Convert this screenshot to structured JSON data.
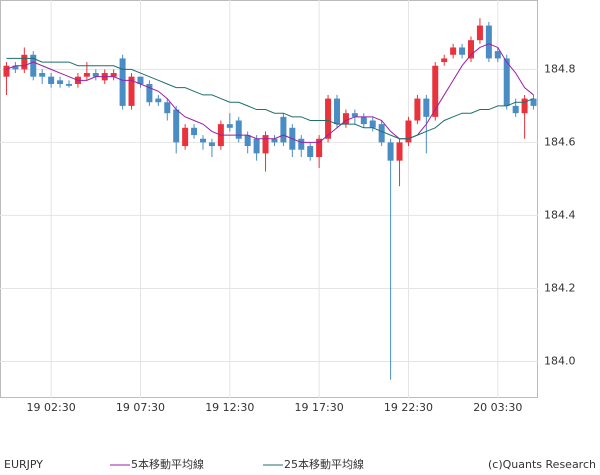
{
  "chart_data": {
    "type": "candlestick",
    "symbol": "EURJPY",
    "credit": "(c)Quants Research",
    "categories": [
      null,
      null,
      null,
      null,
      null,
      "19 02:30",
      null,
      null,
      null,
      null,
      null,
      null,
      null,
      null,
      null,
      "19 07:30",
      null,
      null,
      null,
      null,
      null,
      null,
      null,
      null,
      null,
      "19 12:30",
      null,
      null,
      null,
      null,
      null,
      null,
      null,
      null,
      null,
      "19 17:30",
      null,
      null,
      null,
      null,
      null,
      null,
      null,
      null,
      null,
      "19 22:30",
      null,
      null,
      null,
      null,
      null,
      null,
      null,
      null,
      null,
      "20 03:30",
      null,
      null,
      null,
      null
    ],
    "open": [
      184.78,
      184.81,
      184.8,
      184.84,
      184.79,
      184.78,
      184.77,
      184.76,
      184.76,
      184.78,
      184.79,
      184.77,
      184.78,
      184.83,
      184.7,
      184.78,
      184.76,
      184.72,
      184.71,
      184.69,
      184.59,
      184.64,
      184.61,
      184.6,
      184.59,
      184.65,
      184.66,
      184.62,
      184.61,
      184.57,
      184.61,
      184.67,
      184.64,
      184.61,
      184.59,
      184.56,
      184.61,
      184.72,
      184.65,
      184.68,
      184.67,
      184.66,
      184.65,
      184.6,
      184.55,
      184.6,
      184.66,
      184.72,
      184.67,
      184.82,
      184.84,
      184.86,
      184.83,
      184.88,
      184.92,
      184.85,
      184.83,
      184.7,
      184.68,
      184.72
    ],
    "high": [
      184.82,
      184.82,
      184.86,
      184.85,
      184.8,
      184.79,
      184.78,
      184.77,
      184.79,
      184.82,
      184.8,
      184.8,
      184.8,
      184.84,
      184.79,
      184.78,
      184.77,
      184.73,
      184.72,
      184.7,
      184.65,
      184.65,
      184.62,
      184.61,
      184.66,
      184.68,
      184.67,
      184.63,
      184.62,
      184.63,
      184.62,
      184.68,
      184.65,
      184.62,
      184.6,
      184.62,
      184.73,
      184.73,
      184.69,
      184.69,
      184.68,
      184.67,
      184.66,
      184.61,
      184.61,
      184.67,
      184.73,
      184.73,
      184.82,
      184.84,
      184.87,
      184.87,
      184.89,
      184.94,
      184.93,
      184.86,
      184.84,
      184.72,
      184.73,
      184.73
    ],
    "low": [
      184.73,
      184.79,
      184.79,
      184.77,
      184.76,
      184.75,
      184.75,
      184.75,
      184.75,
      184.77,
      184.77,
      184.76,
      184.77,
      184.69,
      184.69,
      184.75,
      184.7,
      184.7,
      184.66,
      184.57,
      184.58,
      184.61,
      184.58,
      184.56,
      184.58,
      184.63,
      184.6,
      184.57,
      184.55,
      184.52,
      184.59,
      184.59,
      184.56,
      184.56,
      184.55,
      184.53,
      184.6,
      184.64,
      184.64,
      184.65,
      184.64,
      184.63,
      184.59,
      183.95,
      184.48,
      184.59,
      184.65,
      184.57,
      184.66,
      184.81,
      184.83,
      184.83,
      184.82,
      184.87,
      184.82,
      184.82,
      184.69,
      184.67,
      184.61,
      184.69
    ],
    "close": [
      184.81,
      184.8,
      184.84,
      184.78,
      184.78,
      184.76,
      184.76,
      184.755,
      184.78,
      184.79,
      184.78,
      184.79,
      184.79,
      184.7,
      184.78,
      184.76,
      184.71,
      184.71,
      184.68,
      184.6,
      184.64,
      184.62,
      184.6,
      184.59,
      184.65,
      184.64,
      184.61,
      184.59,
      184.57,
      184.62,
      184.6,
      184.6,
      184.58,
      184.58,
      184.56,
      184.61,
      184.72,
      184.65,
      184.68,
      184.67,
      184.65,
      184.64,
      184.6,
      184.55,
      184.6,
      184.66,
      184.72,
      184.67,
      184.81,
      184.83,
      184.86,
      184.84,
      184.88,
      184.92,
      184.83,
      184.83,
      184.7,
      184.68,
      184.72,
      184.7
    ],
    "up_color": "#e8323c",
    "down_color": "#4a8cc4",
    "series": [
      {
        "name": "5本移動平均線",
        "color": "#9b1fa8",
        "values": [
          184.8,
          184.81,
          184.81,
          184.82,
          184.81,
          184.8,
          184.79,
          184.78,
          184.77,
          184.77,
          184.78,
          184.78,
          184.78,
          184.77,
          184.77,
          184.76,
          184.75,
          184.74,
          184.72,
          184.69,
          184.67,
          184.66,
          184.65,
          184.63,
          184.62,
          184.62,
          184.62,
          184.62,
          184.61,
          184.61,
          184.61,
          184.62,
          184.61,
          184.6,
          184.6,
          184.6,
          184.62,
          184.64,
          184.66,
          184.67,
          184.67,
          184.67,
          184.66,
          184.63,
          184.61,
          184.61,
          184.62,
          184.65,
          184.69,
          184.73,
          184.77,
          184.81,
          184.84,
          184.86,
          184.87,
          184.86,
          184.82,
          184.79,
          184.75,
          184.73
        ]
      },
      {
        "name": "25本移動平均線",
        "color": "#1f6f6a",
        "values": [
          184.83,
          184.83,
          184.83,
          184.83,
          184.82,
          184.82,
          184.82,
          184.82,
          184.81,
          184.81,
          184.81,
          184.81,
          184.81,
          184.8,
          184.8,
          184.79,
          184.78,
          184.77,
          184.76,
          184.75,
          184.75,
          184.74,
          184.73,
          184.73,
          184.72,
          184.71,
          184.71,
          184.7,
          184.69,
          184.69,
          184.68,
          184.68,
          184.67,
          184.67,
          184.66,
          184.66,
          184.66,
          184.65,
          184.65,
          184.65,
          184.64,
          184.64,
          184.63,
          184.62,
          184.61,
          184.61,
          184.62,
          184.63,
          184.64,
          184.66,
          184.67,
          184.68,
          184.68,
          184.69,
          184.69,
          184.7,
          184.7,
          184.71,
          184.71,
          184.72
        ]
      }
    ],
    "ylim": [
      183.9,
      184.99
    ],
    "yticks": [
      {
        "value": 184,
        "label": "184.0"
      },
      184.2,
      184.4,
      184.6,
      184.8
    ],
    "grid": true
  }
}
